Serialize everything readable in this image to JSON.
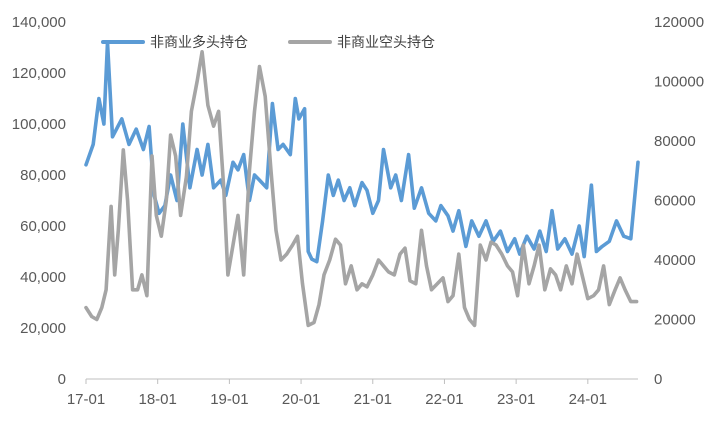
{
  "chart_data": {
    "type": "line",
    "title": "",
    "xlabel": "",
    "ylabel": "",
    "y_left": {
      "ylim": [
        0,
        140000
      ],
      "ticks": [
        "0",
        "20,000",
        "40,000",
        "60,000",
        "80,000",
        "100,000",
        "120,000",
        "140,000"
      ]
    },
    "y_right": {
      "ylim": [
        0,
        120000
      ],
      "ticks": [
        "0",
        "20000",
        "40000",
        "60000",
        "80000",
        "100000",
        "120000"
      ]
    },
    "x_range": [
      2017.0,
      2024.7
    ],
    "x_ticks": [
      {
        "label": "17-01",
        "x": 2017.0
      },
      {
        "label": "18-01",
        "x": 2018.0
      },
      {
        "label": "19-01",
        "x": 2019.0
      },
      {
        "label": "20-01",
        "x": 2020.0
      },
      {
        "label": "21-01",
        "x": 2021.0
      },
      {
        "label": "22-01",
        "x": 2022.0
      },
      {
        "label": "23-01",
        "x": 2023.0
      },
      {
        "label": "24-01",
        "x": 2024.0
      }
    ],
    "grid": false,
    "legend": "top-left",
    "series": [
      {
        "name": "非商业多头持仓",
        "axis": "left",
        "color": "#5B9BD5",
        "x": [
          2017.0,
          2017.1,
          2017.18,
          2017.25,
          2017.3,
          2017.37,
          2017.5,
          2017.6,
          2017.7,
          2017.8,
          2017.88,
          2017.95,
          2018.02,
          2018.1,
          2018.18,
          2018.27,
          2018.35,
          2018.45,
          2018.55,
          2018.62,
          2018.7,
          2018.78,
          2018.88,
          2018.95,
          2019.05,
          2019.12,
          2019.2,
          2019.28,
          2019.35,
          2019.42,
          2019.52,
          2019.6,
          2019.68,
          2019.75,
          2019.85,
          2019.92,
          2019.97,
          2020.05,
          2020.1,
          2020.15,
          2020.22,
          2020.3,
          2020.38,
          2020.45,
          2020.52,
          2020.6,
          2020.68,
          2020.75,
          2020.85,
          2020.92,
          2021.0,
          2021.08,
          2021.15,
          2021.25,
          2021.32,
          2021.4,
          2021.5,
          2021.58,
          2021.68,
          2021.78,
          2021.88,
          2021.95,
          2022.05,
          2022.12,
          2022.2,
          2022.3,
          2022.38,
          2022.48,
          2022.58,
          2022.68,
          2022.78,
          2022.88,
          2022.98,
          2023.05,
          2023.15,
          2023.25,
          2023.33,
          2023.42,
          2023.5,
          2023.58,
          2023.68,
          2023.78,
          2023.88,
          2023.95,
          2024.05,
          2024.12,
          2024.2,
          2024.3,
          2024.4,
          2024.5,
          2024.6,
          2024.7
        ],
        "values": [
          84000,
          92000,
          110000,
          100000,
          132000,
          95000,
          102000,
          92000,
          98000,
          90000,
          99000,
          72000,
          65000,
          68000,
          80000,
          70000,
          100000,
          75000,
          90000,
          80000,
          92000,
          75000,
          78000,
          72000,
          85000,
          82000,
          88000,
          70000,
          80000,
          78000,
          75000,
          108000,
          90000,
          92000,
          88000,
          110000,
          102000,
          106000,
          50000,
          47000,
          46000,
          62000,
          80000,
          72000,
          78000,
          70000,
          75000,
          68000,
          77000,
          74000,
          65000,
          70000,
          90000,
          75000,
          80000,
          70000,
          88000,
          67000,
          75000,
          65000,
          62000,
          68000,
          64000,
          58000,
          66000,
          52000,
          62000,
          56000,
          62000,
          54000,
          58000,
          50000,
          55000,
          49000,
          56000,
          51000,
          58000,
          50000,
          66000,
          51000,
          55000,
          49000,
          60000,
          48000,
          76000,
          50000,
          52000,
          54000,
          62000,
          56000,
          55000,
          85000
        ]
      },
      {
        "name": "非商业空头持仓",
        "axis": "right",
        "color": "#A5A5A5",
        "x": [
          2017.0,
          2017.08,
          2017.15,
          2017.22,
          2017.28,
          2017.35,
          2017.4,
          2017.45,
          2017.52,
          2017.58,
          2017.65,
          2017.72,
          2017.78,
          2017.85,
          2017.92,
          2017.98,
          2018.05,
          2018.12,
          2018.18,
          2018.25,
          2018.32,
          2018.4,
          2018.47,
          2018.55,
          2018.62,
          2018.7,
          2018.78,
          2018.85,
          2018.92,
          2018.98,
          2019.05,
          2019.12,
          2019.2,
          2019.28,
          2019.35,
          2019.42,
          2019.5,
          2019.58,
          2019.65,
          2019.72,
          2019.8,
          2019.88,
          2019.95,
          2020.02,
          2020.1,
          2020.18,
          2020.25,
          2020.32,
          2020.4,
          2020.48,
          2020.55,
          2020.62,
          2020.7,
          2020.78,
          2020.85,
          2020.92,
          2021.0,
          2021.08,
          2021.15,
          2021.22,
          2021.3,
          2021.38,
          2021.45,
          2021.52,
          2021.6,
          2021.68,
          2021.75,
          2021.82,
          2021.9,
          2021.98,
          2022.05,
          2022.12,
          2022.2,
          2022.28,
          2022.35,
          2022.42,
          2022.5,
          2022.58,
          2022.65,
          2022.72,
          2022.8,
          2022.88,
          2022.95,
          2023.02,
          2023.1,
          2023.18,
          2023.25,
          2023.32,
          2023.4,
          2023.48,
          2023.55,
          2023.62,
          2023.7,
          2023.78,
          2023.85,
          2023.92,
          2024.0,
          2024.08,
          2024.15,
          2024.22,
          2024.3,
          2024.38,
          2024.45,
          2024.52,
          2024.6,
          2024.68
        ],
        "values": [
          24000,
          21000,
          20000,
          24000,
          30000,
          58000,
          35000,
          50000,
          77000,
          60000,
          30000,
          30000,
          35000,
          28000,
          75000,
          55000,
          48000,
          60000,
          82000,
          75000,
          55000,
          68000,
          90000,
          100000,
          110000,
          92000,
          85000,
          90000,
          65000,
          35000,
          45000,
          55000,
          35000,
          70000,
          90000,
          105000,
          95000,
          70000,
          50000,
          40000,
          42000,
          45000,
          48000,
          32000,
          18000,
          19000,
          25000,
          35000,
          40000,
          47000,
          45000,
          32000,
          38000,
          30000,
          32000,
          31000,
          35000,
          40000,
          38000,
          36000,
          35000,
          42000,
          44000,
          33000,
          32000,
          50000,
          38000,
          30000,
          32000,
          34000,
          26000,
          28000,
          42000,
          24000,
          20000,
          18000,
          45000,
          40000,
          46000,
          45000,
          42000,
          38000,
          36000,
          28000,
          45000,
          32000,
          38000,
          45000,
          30000,
          37000,
          35000,
          30000,
          38000,
          32000,
          42000,
          35000,
          27000,
          28000,
          30000,
          38000,
          25000,
          30000,
          34000,
          30000,
          26000,
          26000
        ]
      }
    ]
  }
}
